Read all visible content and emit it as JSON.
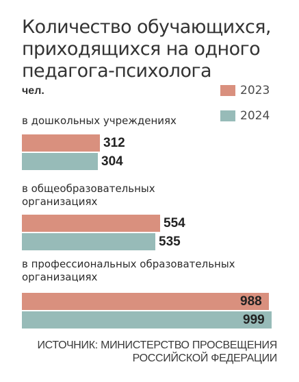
{
  "chart_data": {
    "type": "bar",
    "orientation": "horizontal",
    "title": "Количество обучающихся, приходящихся на одного педагога-психолога",
    "unit": "чел.",
    "categories": [
      "в дошкольных учреждениях",
      "в общеобразовательных организациях",
      "в профессиональных образовательных организациях"
    ],
    "series": [
      {
        "name": "2023",
        "color": "#d9907e",
        "values": [
          312,
          554,
          988
        ]
      },
      {
        "name": "2024",
        "color": "#97bbb8",
        "values": [
          304,
          535,
          999
        ]
      }
    ],
    "xlim": [
      0,
      1000
    ],
    "legend": "top-right",
    "grid": false
  },
  "source": "ИСТОЧНИК: МИНИСТЕРСТВО ПРОСВЕЩЕНИЯ РОССИЙСКОЙ ФЕДЕРАЦИИ"
}
